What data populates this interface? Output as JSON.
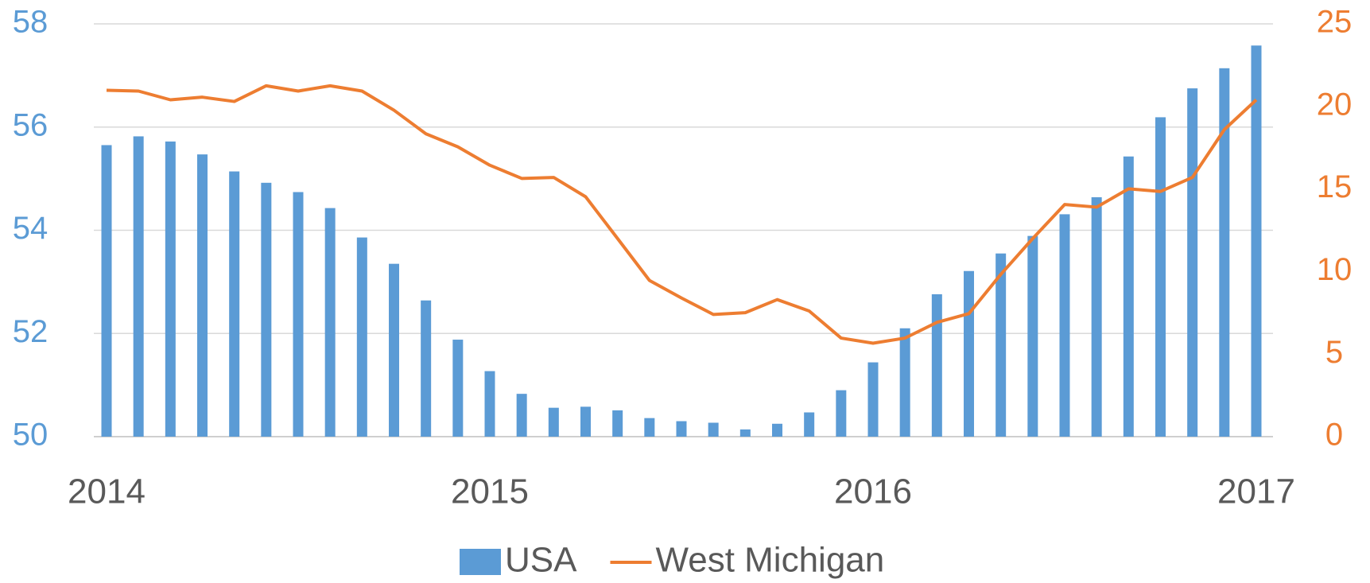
{
  "chart_data": {
    "type": "bar",
    "categories": [
      "2014",
      null,
      null,
      null,
      null,
      null,
      null,
      null,
      null,
      null,
      null,
      null,
      "2015",
      null,
      null,
      null,
      null,
      null,
      null,
      null,
      null,
      null,
      null,
      null,
      "2016",
      null,
      null,
      null,
      null,
      null,
      null,
      null,
      null,
      null,
      null,
      null,
      "2017"
    ],
    "series": [
      {
        "name": "USA",
        "type": "bar",
        "color": "#5b9bd5",
        "values": [
          55.65,
          55.82,
          55.72,
          55.47,
          55.14,
          54.92,
          54.74,
          54.43,
          53.86,
          53.35,
          52.64,
          51.88,
          51.27,
          50.83,
          50.56,
          50.58,
          50.51,
          50.36,
          50.3,
          50.27,
          50.14,
          50.25,
          50.47,
          50.9,
          51.44,
          52.1,
          52.76,
          53.21,
          53.55,
          53.89,
          54.31,
          54.64,
          55.43,
          56.19,
          56.75,
          57.14,
          57.58
        ]
      },
      {
        "name": "West Michigan",
        "type": "line",
        "axis": "y2",
        "color": "#ed7d31",
        "values": [
          20.98,
          20.93,
          20.4,
          20.56,
          20.3,
          21.25,
          20.93,
          21.25,
          20.93,
          19.77,
          18.34,
          17.55,
          16.44,
          15.64,
          15.7,
          14.53,
          12.0,
          9.46,
          8.4,
          7.4,
          7.51,
          8.3,
          7.61,
          5.97,
          5.66,
          5.97,
          6.92,
          7.45,
          9.83,
          12.0,
          14.06,
          13.9,
          15.01,
          14.85,
          15.7,
          18.6,
          20.4
        ]
      }
    ],
    "ylim": [
      50,
      58
    ],
    "yticks": [
      50,
      52,
      54,
      56,
      58
    ],
    "y2lim": [
      0,
      25
    ],
    "y2ticks": [
      0,
      5,
      10,
      15,
      20,
      25
    ],
    "grid": true,
    "legend": "bottom"
  }
}
